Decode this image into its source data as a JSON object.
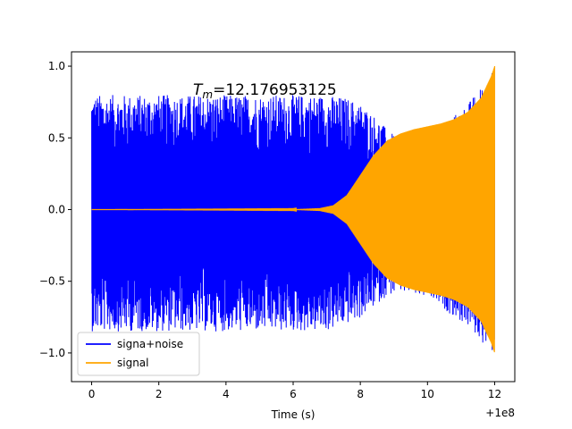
{
  "chart_data": {
    "type": "line",
    "title": "",
    "xlabel": "Time (s)",
    "ylabel": "",
    "xlim": [
      -0.6,
      12.6
    ],
    "ylim": [
      -1.2,
      1.1
    ],
    "x_offset_text": "+1e8",
    "annotation": {
      "symbol": "T",
      "subscript": "m",
      "text": "=12.176953125"
    },
    "xticks": [
      {
        "value": 0,
        "label": "0"
      },
      {
        "value": 2,
        "label": "2"
      },
      {
        "value": 4,
        "label": "4"
      },
      {
        "value": 6,
        "label": "6"
      },
      {
        "value": 8,
        "label": "8"
      },
      {
        "value": 10,
        "label": "10"
      },
      {
        "value": 12,
        "label": "12"
      }
    ],
    "yticks": [
      {
        "value": -1.0,
        "label": "−1.0"
      },
      {
        "value": -0.5,
        "label": "−0.5"
      },
      {
        "value": 0.0,
        "label": "0.0"
      },
      {
        "value": 0.5,
        "label": "0.5"
      },
      {
        "value": 1.0,
        "label": "1.0"
      }
    ],
    "series": [
      {
        "name": "signa+noise",
        "color": "#0000ff",
        "x": [
          0,
          7.0,
          7.6,
          8.0,
          8.4,
          8.8,
          9.2,
          9.6,
          10.0,
          10.4,
          10.8,
          11.2,
          11.6,
          11.9,
          12.0
        ],
        "upper": [
          0.8,
          0.8,
          0.78,
          0.74,
          0.66,
          0.56,
          0.48,
          0.52,
          0.56,
          0.6,
          0.66,
          0.74,
          0.86,
          0.97,
          1.0
        ],
        "lower": [
          -0.85,
          -0.85,
          -0.8,
          -0.76,
          -0.68,
          -0.6,
          -0.58,
          -0.6,
          -0.62,
          -0.68,
          -0.75,
          -0.82,
          -0.92,
          -1.0,
          -1.0
        ]
      },
      {
        "name": "signal",
        "color": "#ffa500",
        "x": [
          0,
          6.0,
          6.8,
          7.2,
          7.6,
          8.0,
          8.4,
          8.8,
          9.2,
          9.6,
          10.0,
          10.4,
          10.8,
          11.2,
          11.6,
          11.9,
          12.0
        ],
        "envelope": [
          0.0,
          0.002,
          0.01,
          0.03,
          0.1,
          0.24,
          0.38,
          0.48,
          0.53,
          0.56,
          0.58,
          0.6,
          0.63,
          0.68,
          0.78,
          0.93,
          1.0
        ]
      }
    ],
    "legend": {
      "placement": "lower-left"
    },
    "grid": false
  }
}
